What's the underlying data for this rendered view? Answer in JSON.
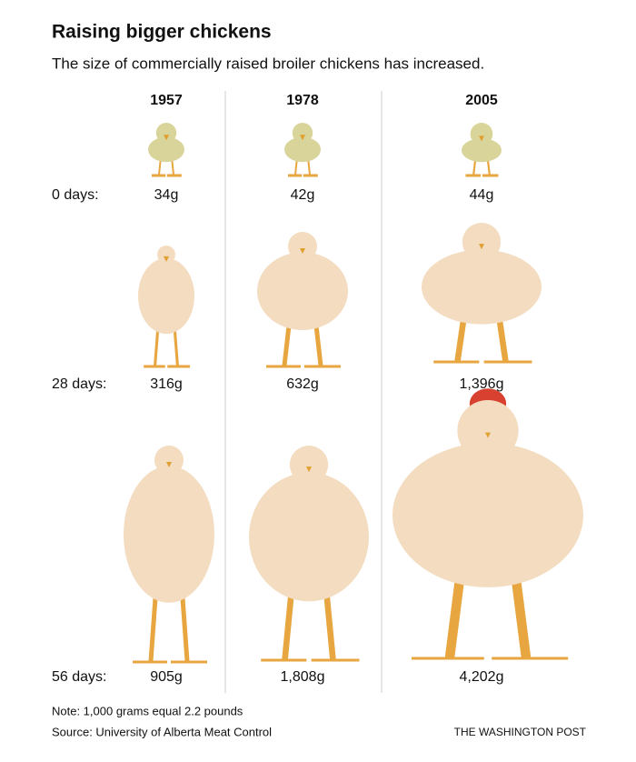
{
  "header": {
    "title": "Raising bigger chickens",
    "subtitle": "The size of commercially raised broiler chickens has increased."
  },
  "table": {
    "columns": [
      "1957",
      "1978",
      "2005"
    ],
    "rows": [
      {
        "label": "0 days:",
        "cells": [
          "34g",
          "42g",
          "44g"
        ]
      },
      {
        "label": "28 days:",
        "cells": [
          "316g",
          "632g",
          "1,396g"
        ]
      },
      {
        "label": "56 days:",
        "cells": [
          "905g",
          "1,808g",
          "4,202g"
        ]
      }
    ]
  },
  "footer": {
    "note": "Note: 1,000 grams equal 2.2 pounds",
    "source": "Source: University of Alberta Meat Control",
    "credit": "THE WASHINGTON POST"
  }
}
